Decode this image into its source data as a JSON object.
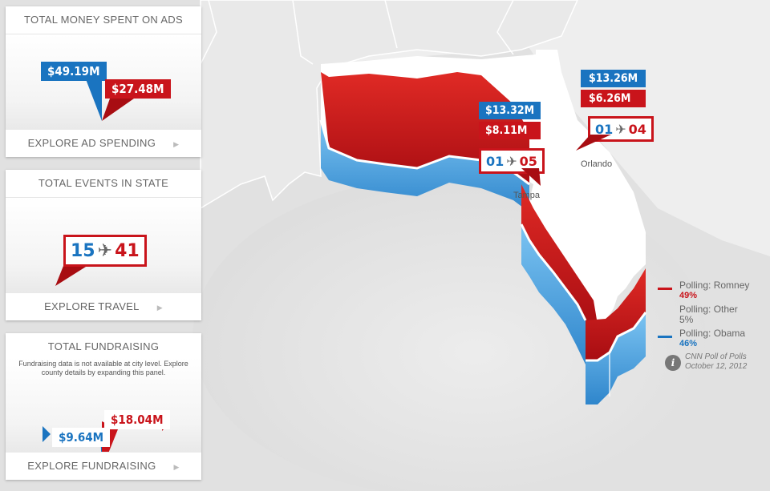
{
  "panels": {
    "ads": {
      "title": "TOTAL MONEY SPENT ON ADS",
      "blue_amount": "$49.19M",
      "red_amount": "$27.48M",
      "footer": "EXPLORE AD SPENDING"
    },
    "events": {
      "title": "TOTAL EVENTS IN STATE",
      "blue_count": "15",
      "red_count": "41",
      "footer": "EXPLORE TRAVEL"
    },
    "fundraising": {
      "title": "TOTAL FUNDRAISING",
      "note": "Fundraising data is not available at city level. Explore county details by expanding this panel.",
      "blue_amount": "$9.64M",
      "red_amount": "$18.04M",
      "footer": "EXPLORE FUNDRAISING"
    }
  },
  "cities": [
    {
      "name": "Tampa",
      "ads_blue": "$13.32M",
      "ads_red": "$8.11M",
      "visits_blue": "01",
      "visits_red": "05"
    },
    {
      "name": "Orlando",
      "ads_blue": "$13.26M",
      "ads_red": "$6.26M",
      "visits_blue": "01",
      "visits_red": "04"
    }
  ],
  "legend": {
    "romney_label": "Polling: Romney",
    "romney_pct": "49%",
    "other_label": "Polling: Other",
    "other_pct": "5%",
    "obama_label": "Polling: Obama",
    "obama_pct": "46%"
  },
  "source": {
    "line1": "CNN Poll of Polls",
    "line2": "October 12, 2012"
  },
  "icons": {
    "travel": "airplane-icon",
    "info": "info-icon",
    "footer_arrow": "play-arrow-icon"
  },
  "colors": {
    "democrat": "#1a74c0",
    "republican": "#c9141b",
    "polling_other": "#666666"
  }
}
